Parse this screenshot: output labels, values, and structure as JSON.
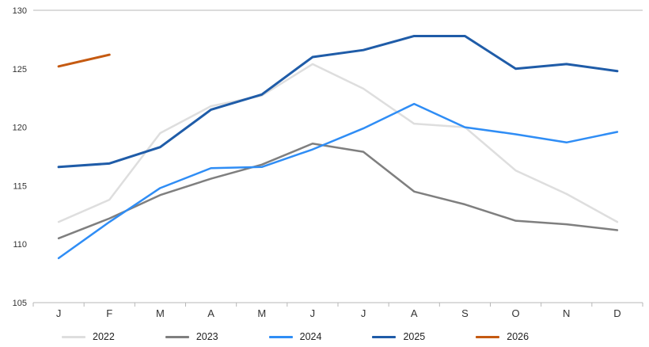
{
  "chart_data": {
    "type": "line",
    "title": "",
    "xlabel": "",
    "ylabel": "",
    "categories": [
      "J",
      "F",
      "M",
      "A",
      "M",
      "J",
      "J",
      "A",
      "S",
      "O",
      "N",
      "D"
    ],
    "series": [
      {
        "name": "2022",
        "color": "#dedede",
        "stroke_width": 2.5,
        "values": [
          111.9,
          113.8,
          119.5,
          121.8,
          122.7,
          125.4,
          123.3,
          120.3,
          120.0,
          116.3,
          114.3,
          111.9
        ]
      },
      {
        "name": "2023",
        "color": "#7f7f7f",
        "stroke_width": 2.5,
        "values": [
          110.5,
          112.2,
          114.2,
          115.6,
          116.8,
          118.6,
          117.9,
          114.5,
          113.4,
          112.0,
          111.7,
          111.2
        ]
      },
      {
        "name": "2024",
        "color": "#2f8df5",
        "stroke_width": 2.5,
        "values": [
          108.8,
          111.9,
          114.8,
          116.5,
          116.6,
          118.1,
          119.9,
          122.0,
          120.0,
          119.4,
          118.7,
          119.6
        ]
      },
      {
        "name": "2025",
        "color": "#1f5ca8",
        "stroke_width": 3,
        "values": [
          116.6,
          116.9,
          118.3,
          121.5,
          122.8,
          126.0,
          126.6,
          127.8,
          127.8,
          125.0,
          125.4,
          124.8
        ]
      },
      {
        "name": "2026",
        "color": "#c55a11",
        "stroke_width": 3,
        "values": [
          125.2,
          126.2
        ]
      }
    ],
    "ylim": [
      105,
      130
    ],
    "yticks": [
      105,
      110,
      115,
      120,
      125,
      130
    ],
    "grid": "horizontal boundary lines at 105 and 130 only",
    "legend_position": "bottom",
    "axis_line_color": "#b7b7b7",
    "tick_color": "#b7b7b7"
  }
}
